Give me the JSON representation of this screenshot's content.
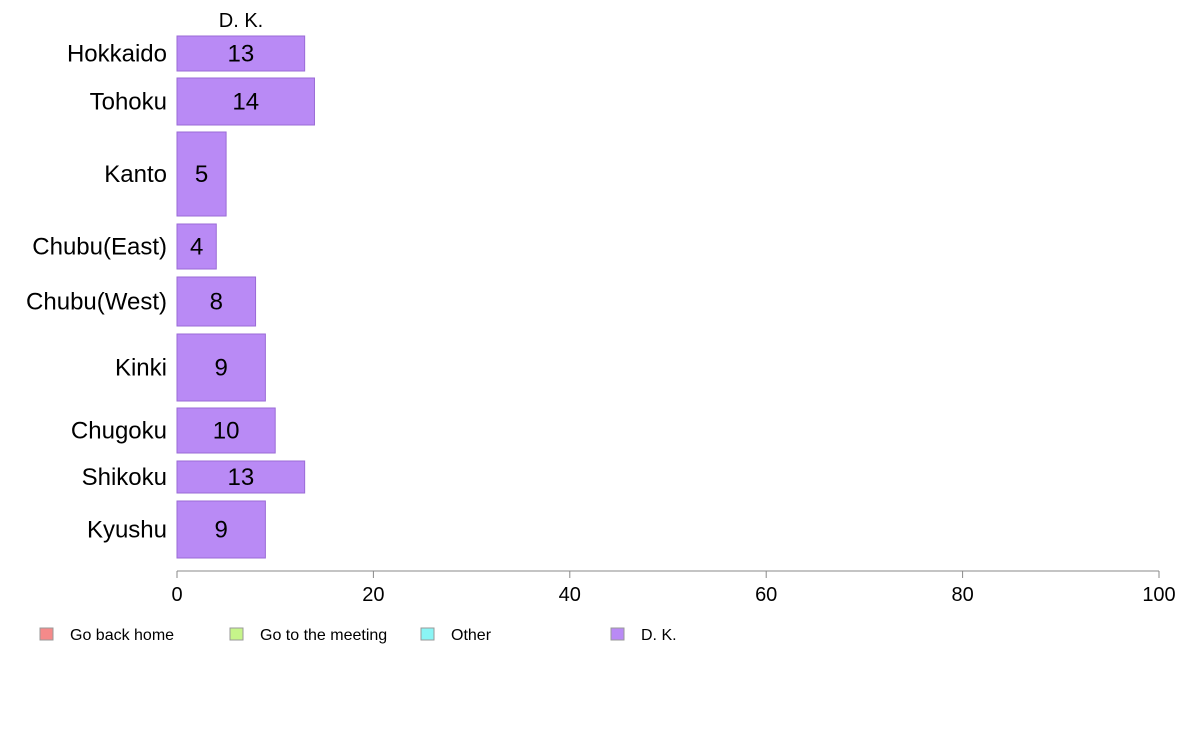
{
  "chart_data": {
    "type": "bar",
    "orientation": "horizontal",
    "title": "D. K.",
    "categories": [
      "Hokkaido",
      "Tohoku",
      "Kanto",
      "Chubu(East)",
      "Chubu(West)",
      "Kinki",
      "Chugoku",
      "Shikoku",
      "Kyushu"
    ],
    "series": [
      {
        "name": "D. K.",
        "values": [
          13,
          14,
          5,
          4,
          8,
          9,
          10,
          13,
          9
        ]
      }
    ],
    "data_labels": [
      "13",
      "14",
      "5",
      "4",
      "8",
      "9",
      "10",
      "13",
      "9"
    ],
    "xlim": [
      0,
      100
    ],
    "xticks": [
      0,
      20,
      40,
      60,
      80,
      100
    ],
    "xtick_labels": [
      "0",
      "20",
      "40",
      "60",
      "80",
      "100"
    ],
    "xlabel": "",
    "ylabel": "",
    "grid": false,
    "legend": {
      "position": "bottom",
      "entries": [
        {
          "label": "Go back home",
          "color": "#f58a8a"
        },
        {
          "label": "Go to the meeting",
          "color": "#c6f58a"
        },
        {
          "label": "Other",
          "color": "#8af5f5"
        },
        {
          "label": "D. K.",
          "color": "#b98af5"
        }
      ]
    },
    "colors": {
      "bar_fill": "#b98af5",
      "bar_stroke": "#9a6bd6",
      "axis": "#888888",
      "text": "#000000"
    }
  }
}
